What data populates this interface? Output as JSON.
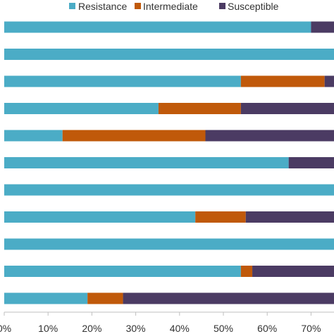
{
  "chart_data": {
    "type": "bar",
    "orientation": "horizontal",
    "stacked": true,
    "title": "",
    "xlabel": "",
    "ylabel": "",
    "categories": [
      "",
      "",
      "",
      "",
      "",
      "",
      "",
      "",
      "",
      "",
      ""
    ],
    "series": [
      {
        "name": "Resistance",
        "color": "#4bacc6",
        "values": [
          70.0,
          100.0,
          54.0,
          35.2,
          13.3,
          64.9,
          100.0,
          43.6,
          100.0,
          54.0,
          19.0
        ]
      },
      {
        "name": "Intermediate",
        "color": "#c0590a",
        "values": [
          0.0,
          0.0,
          19.1,
          18.8,
          32.6,
          0.0,
          0.0,
          11.5,
          0.0,
          2.6,
          8.1
        ]
      },
      {
        "name": "Susceptible",
        "color": "#4b3b63",
        "values": [
          30.0,
          0.0,
          26.9,
          46.0,
          54.1,
          35.1,
          0.0,
          44.9,
          0.0,
          43.4,
          72.9
        ]
      }
    ],
    "xlim": [
      0,
      100
    ],
    "xticks": [
      "0%",
      "10%",
      "20%",
      "30%",
      "40%",
      "50%",
      "60%",
      "70%"
    ],
    "xtick_values": [
      0,
      10,
      20,
      30,
      40,
      50,
      60,
      70
    ],
    "grid": false,
    "legend": "top"
  }
}
